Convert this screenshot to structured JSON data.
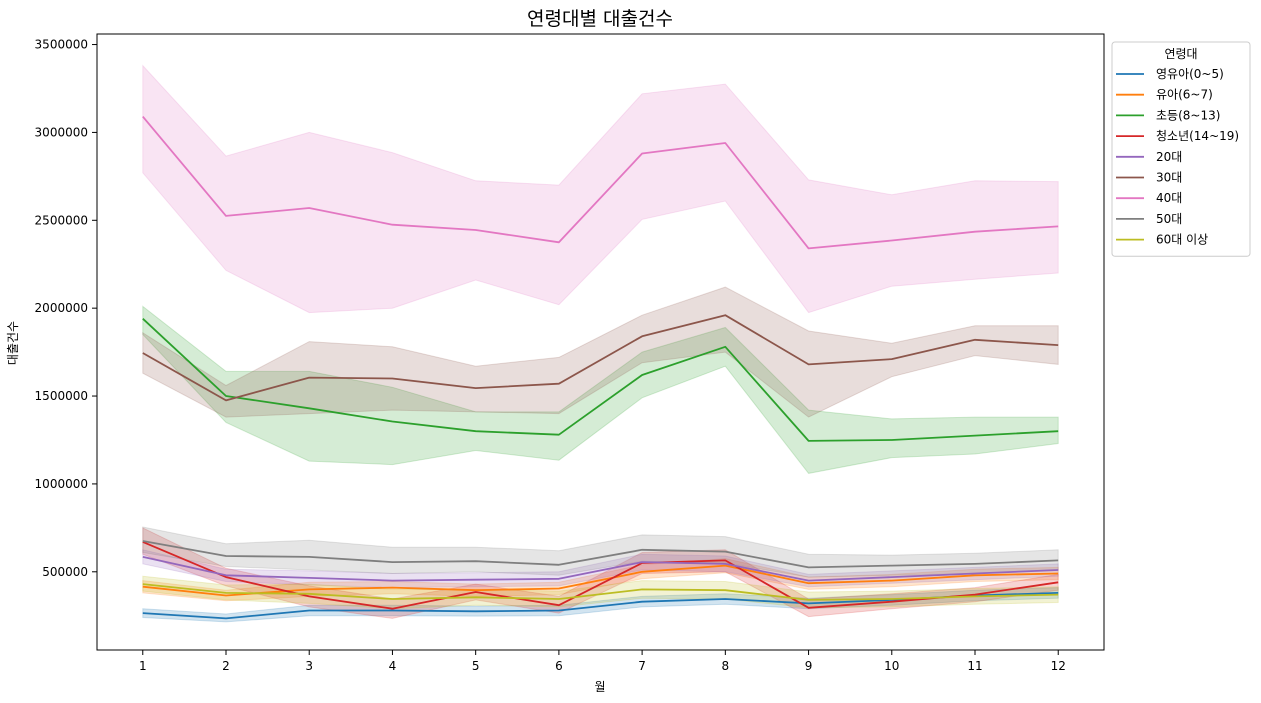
{
  "chart_data": {
    "type": "line",
    "title": "연령대별 대출건수",
    "xlabel": "월",
    "ylabel": "대출건수",
    "x": [
      1,
      2,
      3,
      4,
      5,
      6,
      7,
      8,
      9,
      10,
      11,
      12
    ],
    "xticks": [
      "1",
      "2",
      "3",
      "4",
      "5",
      "6",
      "7",
      "8",
      "9",
      "10",
      "11",
      "12"
    ],
    "yticks": [
      500000,
      1000000,
      1500000,
      2000000,
      2500000,
      3000000,
      3500000
    ],
    "ytick_labels": [
      "500000",
      "1000000",
      "1500000",
      "2000000",
      "2500000",
      "3000000",
      "3500000"
    ],
    "xlim": [
      0.45,
      12.55
    ],
    "ylim": [
      55000,
      3560000
    ],
    "legend": {
      "title": "연령대",
      "position": "upper-right-outside"
    },
    "grid": false,
    "confidence_bands": true,
    "series": [
      {
        "name": "영유아(0~5)",
        "color": "#1f77b4",
        "values": [
          265000,
          235000,
          280000,
          280000,
          275000,
          280000,
          330000,
          345000,
          320000,
          340000,
          365000,
          380000
        ],
        "lower": [
          240000,
          215000,
          250000,
          250000,
          248000,
          250000,
          300000,
          315000,
          290000,
          310000,
          335000,
          350000
        ],
        "upper": [
          290000,
          260000,
          310000,
          310000,
          305000,
          310000,
          360000,
          375000,
          350000,
          370000,
          395000,
          410000
        ]
      },
      {
        "name": "유아(6~7)",
        "color": "#ff7f0e",
        "values": [
          415000,
          365000,
          400000,
          410000,
          395000,
          405000,
          500000,
          535000,
          435000,
          450000,
          480000,
          490000
        ],
        "lower": [
          380000,
          335000,
          360000,
          375000,
          360000,
          370000,
          460000,
          495000,
          400000,
          415000,
          445000,
          455000
        ],
        "upper": [
          450000,
          395000,
          440000,
          445000,
          430000,
          440000,
          540000,
          575000,
          470000,
          485000,
          515000,
          525000
        ]
      },
      {
        "name": "초등(8~13)",
        "color": "#2ca02c",
        "values": [
          1940000,
          1500000,
          1430000,
          1355000,
          1300000,
          1280000,
          1620000,
          1780000,
          1245000,
          1250000,
          1275000,
          1300000
        ],
        "lower": [
          1850000,
          1350000,
          1130000,
          1110000,
          1190000,
          1135000,
          1490000,
          1670000,
          1060000,
          1150000,
          1170000,
          1230000
        ],
        "upper": [
          2010000,
          1640000,
          1640000,
          1550000,
          1410000,
          1410000,
          1750000,
          1890000,
          1420000,
          1370000,
          1380000,
          1380000
        ]
      },
      {
        "name": "청소년(14~19)",
        "color": "#d62728",
        "values": [
          670000,
          470000,
          360000,
          290000,
          385000,
          310000,
          550000,
          565000,
          295000,
          330000,
          370000,
          440000
        ],
        "lower": [
          600000,
          420000,
          300000,
          235000,
          340000,
          265000,
          490000,
          500000,
          245000,
          290000,
          330000,
          395000
        ],
        "upper": [
          750000,
          520000,
          420000,
          345000,
          430000,
          360000,
          610000,
          625000,
          345000,
          375000,
          410000,
          485000
        ]
      },
      {
        "name": "20대",
        "color": "#9467bd",
        "values": [
          585000,
          480000,
          465000,
          450000,
          455000,
          460000,
          555000,
          545000,
          450000,
          470000,
          490000,
          510000
        ],
        "lower": [
          545000,
          445000,
          425000,
          410000,
          415000,
          420000,
          510000,
          500000,
          415000,
          435000,
          455000,
          475000
        ],
        "upper": [
          625000,
          515000,
          505000,
          490000,
          495000,
          500000,
          600000,
          590000,
          485000,
          505000,
          525000,
          545000
        ]
      },
      {
        "name": "30대",
        "color": "#8c564b",
        "values": [
          1745000,
          1475000,
          1605000,
          1600000,
          1545000,
          1570000,
          1840000,
          1960000,
          1680000,
          1710000,
          1820000,
          1790000
        ],
        "lower": [
          1630000,
          1380000,
          1400000,
          1420000,
          1410000,
          1400000,
          1690000,
          1750000,
          1380000,
          1610000,
          1730000,
          1680000
        ],
        "upper": [
          1860000,
          1560000,
          1810000,
          1780000,
          1670000,
          1720000,
          1960000,
          2120000,
          1870000,
          1800000,
          1900000,
          1900000
        ]
      },
      {
        "name": "40대",
        "color": "#e377c2",
        "values": [
          3090000,
          2525000,
          2570000,
          2475000,
          2445000,
          2375000,
          2880000,
          2940000,
          2340000,
          2385000,
          2435000,
          2465000
        ],
        "lower": [
          2770000,
          2215000,
          1975000,
          2000000,
          2160000,
          2020000,
          2505000,
          2610000,
          1975000,
          2125000,
          2165000,
          2200000
        ],
        "upper": [
          3380000,
          2865000,
          3000000,
          2885000,
          2725000,
          2700000,
          3220000,
          3275000,
          2730000,
          2645000,
          2725000,
          2720000
        ]
      },
      {
        "name": "50대",
        "color": "#7f7f7f",
        "values": [
          675000,
          590000,
          585000,
          555000,
          560000,
          540000,
          625000,
          615000,
          525000,
          535000,
          545000,
          565000
        ],
        "lower": [
          610000,
          530000,
          510000,
          490000,
          500000,
          480000,
          560000,
          550000,
          470000,
          480000,
          490000,
          510000
        ],
        "upper": [
          755000,
          660000,
          680000,
          640000,
          640000,
          620000,
          710000,
          700000,
          600000,
          595000,
          605000,
          625000
        ]
      },
      {
        "name": "60대 이상",
        "color": "#bcbd22",
        "values": [
          430000,
          380000,
          375000,
          345000,
          355000,
          345000,
          400000,
          395000,
          340000,
          345000,
          360000,
          370000
        ],
        "lower": [
          390000,
          340000,
          320000,
          290000,
          310000,
          300000,
          350000,
          345000,
          295000,
          300000,
          315000,
          325000
        ],
        "upper": [
          475000,
          425000,
          430000,
          400000,
          400000,
          390000,
          450000,
          445000,
          385000,
          390000,
          405000,
          415000
        ]
      }
    ]
  }
}
